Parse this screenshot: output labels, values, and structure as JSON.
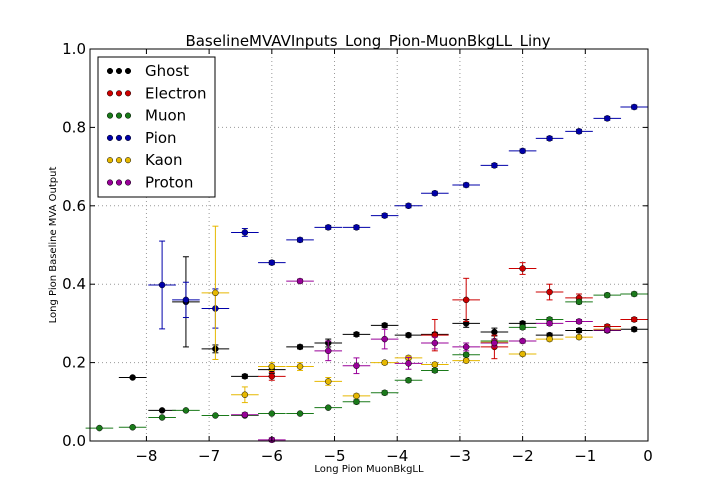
{
  "chart_data": {
    "type": "scatter",
    "title": "BaselineMVAVInputs_Long_Pion-MuonBkgLL_Liny",
    "xlabel": "Long Pion MuonBkgLL",
    "ylabel": "Long Pion Baseline MVA Output",
    "xlim": [
      -8.9,
      0
    ],
    "ylim": [
      0.0,
      1.0
    ],
    "xticks": [
      -8,
      -7,
      -6,
      -5,
      -4,
      -3,
      -2,
      -1,
      0
    ],
    "xtick_labels": [
      "−8",
      "−7",
      "−6",
      "−5",
      "−4",
      "−3",
      "−2",
      "−1",
      "0"
    ],
    "yticks": [
      0.0,
      0.2,
      0.4,
      0.6,
      0.8,
      1.0
    ],
    "ytick_labels": [
      "0.0",
      "0.2",
      "0.4",
      "0.6",
      "0.8",
      "1.0"
    ],
    "grid": true,
    "legend_position": "top-left",
    "x_bin_half_width": 0.22,
    "series": [
      {
        "name": "Ghost",
        "color": "#000000",
        "points": [
          [
            -8.22,
            0.162,
            0
          ],
          [
            -7.75,
            0.078,
            0
          ],
          [
            -7.37,
            0.355,
            0.115
          ],
          [
            -6.9,
            0.235,
            0.01
          ],
          [
            -6.43,
            0.165,
            0.005
          ],
          [
            -6.0,
            0.182,
            0.01
          ],
          [
            -5.55,
            0.24,
            0.005
          ],
          [
            -5.1,
            0.25,
            0.01
          ],
          [
            -4.65,
            0.272,
            0.005
          ],
          [
            -4.2,
            0.295,
            0.005
          ],
          [
            -3.82,
            0.27,
            0.005
          ],
          [
            -3.4,
            0.272,
            0.005
          ],
          [
            -2.9,
            0.3,
            0.01
          ],
          [
            -2.45,
            0.278,
            0.01
          ],
          [
            -2.0,
            0.3,
            0.005
          ],
          [
            -1.57,
            0.27,
            0.005
          ],
          [
            -1.1,
            0.282,
            0.005
          ],
          [
            -0.65,
            0.282,
            0.005
          ],
          [
            -0.22,
            0.285,
            0.005
          ]
        ]
      },
      {
        "name": "Electron",
        "color": "#cc0000",
        "points": [
          [
            -6.0,
            0.165,
            0.01
          ],
          [
            -3.4,
            0.27,
            0.04
          ],
          [
            -2.9,
            0.36,
            0.055
          ],
          [
            -2.45,
            0.24,
            0.03
          ],
          [
            -2.0,
            0.44,
            0.015
          ],
          [
            -1.57,
            0.38,
            0.02
          ],
          [
            -1.1,
            0.365,
            0.01
          ],
          [
            -0.65,
            0.292,
            0.005
          ],
          [
            -0.22,
            0.31,
            0.005
          ]
        ]
      },
      {
        "name": "Muon",
        "color": "#1a7a1a",
        "points": [
          [
            -8.75,
            0.033,
            0
          ],
          [
            -8.22,
            0.035,
            0
          ],
          [
            -7.75,
            0.06,
            0
          ],
          [
            -7.37,
            0.078,
            0
          ],
          [
            -6.9,
            0.065,
            0
          ],
          [
            -6.43,
            0.065,
            0
          ],
          [
            -6.0,
            0.07,
            0
          ],
          [
            -5.55,
            0.07,
            0
          ],
          [
            -5.1,
            0.085,
            0
          ],
          [
            -4.65,
            0.1,
            0.005
          ],
          [
            -4.2,
            0.123,
            0.005
          ],
          [
            -3.82,
            0.155,
            0.005
          ],
          [
            -3.4,
            0.18,
            0.005
          ],
          [
            -2.9,
            0.22,
            0.005
          ],
          [
            -2.45,
            0.255,
            0.005
          ],
          [
            -2.0,
            0.29,
            0.005
          ],
          [
            -1.57,
            0.31,
            0.005
          ],
          [
            -1.1,
            0.355,
            0.005
          ],
          [
            -0.65,
            0.372,
            0.005
          ],
          [
            -0.22,
            0.375,
            0.005
          ]
        ]
      },
      {
        "name": "Pion",
        "color": "#0000aa",
        "points": [
          [
            -7.75,
            0.398,
            0.112
          ],
          [
            -7.37,
            0.36,
            0.045
          ],
          [
            -6.9,
            0.338,
            0.05
          ],
          [
            -6.43,
            0.532,
            0.01
          ],
          [
            -6.0,
            0.455,
            0.005
          ],
          [
            -5.55,
            0.513,
            0.005
          ],
          [
            -5.1,
            0.545,
            0.005
          ],
          [
            -4.65,
            0.545,
            0.005
          ],
          [
            -4.2,
            0.575,
            0.005
          ],
          [
            -3.82,
            0.6,
            0.005
          ],
          [
            -3.4,
            0.632,
            0.005
          ],
          [
            -2.9,
            0.653,
            0.005
          ],
          [
            -2.45,
            0.703,
            0.005
          ],
          [
            -2.0,
            0.74,
            0.005
          ],
          [
            -1.57,
            0.772,
            0.005
          ],
          [
            -1.1,
            0.79,
            0.005
          ],
          [
            -0.65,
            0.823,
            0.005
          ],
          [
            -0.22,
            0.852,
            0.005
          ]
        ]
      },
      {
        "name": "Kaon",
        "color": "#e6b800",
        "points": [
          [
            -6.9,
            0.378,
            0.17
          ],
          [
            -6.43,
            0.118,
            0.02
          ],
          [
            -6.0,
            0.19,
            0.01
          ],
          [
            -5.55,
            0.19,
            0.01
          ],
          [
            -5.1,
            0.152,
            0.01
          ],
          [
            -4.65,
            0.115,
            0.005
          ],
          [
            -4.2,
            0.2,
            0.005
          ],
          [
            -3.82,
            0.212,
            0.005
          ],
          [
            -3.4,
            0.195,
            0.005
          ],
          [
            -2.9,
            0.205,
            0.005
          ],
          [
            -2.45,
            0.252,
            0.005
          ],
          [
            -2.0,
            0.222,
            0.005
          ],
          [
            -1.57,
            0.26,
            0.005
          ],
          [
            -1.1,
            0.265,
            0.005
          ],
          [
            -0.65,
            0.285,
            0.005
          ]
        ]
      },
      {
        "name": "Proton",
        "color": "#990099",
        "points": [
          [
            -6.43,
            0.067,
            0.005
          ],
          [
            -6.0,
            0.003,
            0.005
          ],
          [
            -5.55,
            0.408,
            0.005
          ],
          [
            -5.1,
            0.23,
            0.025
          ],
          [
            -4.65,
            0.192,
            0.02
          ],
          [
            -4.2,
            0.26,
            0.025
          ],
          [
            -3.82,
            0.198,
            0.015
          ],
          [
            -3.4,
            0.25,
            0.015
          ],
          [
            -2.9,
            0.24,
            0.01
          ],
          [
            -2.45,
            0.25,
            0.01
          ],
          [
            -2.0,
            0.255,
            0.005
          ],
          [
            -1.57,
            0.3,
            0.005
          ],
          [
            -1.1,
            0.305,
            0.005
          ],
          [
            -0.65,
            0.283,
            0.005
          ]
        ]
      }
    ]
  }
}
